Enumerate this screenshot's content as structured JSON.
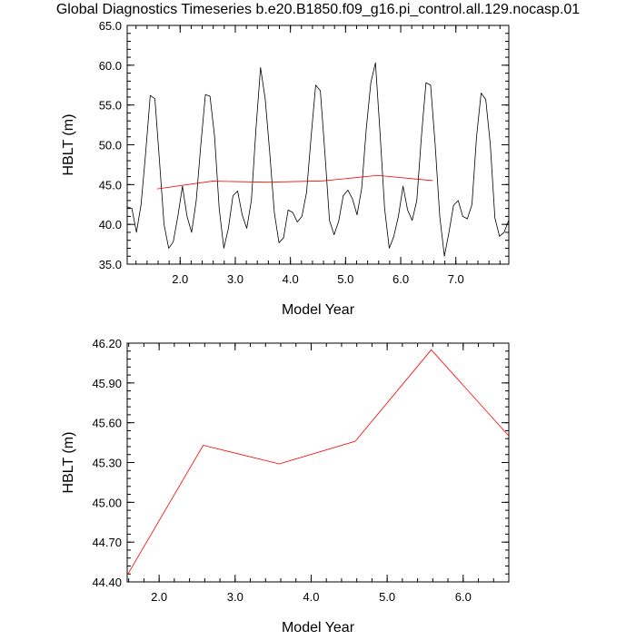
{
  "page": {
    "title": "Global Diagnostics Timeseries b.e20.B1850.f09_g16.pi_control.all.129.nocasp.01"
  },
  "colors": {
    "monthly_line": "#000000",
    "annual_line": "#ff0000",
    "axes": "#000000",
    "background": "#ffffff"
  },
  "chart_data": [
    {
      "type": "line",
      "title": "",
      "xlabel": "Model Year",
      "ylabel": "HBLT (m)",
      "xlim": [
        1.04,
        7.96
      ],
      "ylim": [
        35.0,
        65.0
      ],
      "x_ticks": [
        2.0,
        3.0,
        4.0,
        5.0,
        6.0,
        7.0
      ],
      "x_tick_labels": [
        "2.0",
        "3.0",
        "4.0",
        "5.0",
        "6.0",
        "7.0"
      ],
      "y_ticks": [
        35.0,
        40.0,
        45.0,
        50.0,
        55.0,
        60.0,
        65.0
      ],
      "y_tick_labels": [
        "35.0",
        "40.0",
        "45.0",
        "50.0",
        "55.0",
        "60.0",
        "65.0"
      ],
      "grid": false,
      "series": [
        {
          "key": "monthly",
          "color": "#000000",
          "x": [
            1.042,
            1.125,
            1.208,
            1.292,
            1.375,
            1.458,
            1.542,
            1.625,
            1.708,
            1.792,
            1.875,
            1.958,
            2.042,
            2.125,
            2.208,
            2.292,
            2.375,
            2.458,
            2.542,
            2.625,
            2.708,
            2.792,
            2.875,
            2.958,
            3.042,
            3.125,
            3.208,
            3.292,
            3.375,
            3.458,
            3.542,
            3.625,
            3.708,
            3.792,
            3.875,
            3.958,
            4.042,
            4.125,
            4.208,
            4.292,
            4.375,
            4.458,
            4.542,
            4.625,
            4.708,
            4.792,
            4.875,
            4.958,
            5.042,
            5.125,
            5.208,
            5.292,
            5.375,
            5.458,
            5.542,
            5.625,
            5.708,
            5.792,
            5.875,
            5.958,
            6.042,
            6.125,
            6.208,
            6.292,
            6.375,
            6.458,
            6.542,
            6.625,
            6.708,
            6.792,
            6.875,
            6.958,
            7.042,
            7.125,
            7.208,
            7.292,
            7.375,
            7.458,
            7.542,
            7.625,
            7.708,
            7.792,
            7.875,
            7.958
          ],
          "values": [
            42.2,
            42.0,
            39.0,
            42.5,
            49.0,
            56.2,
            55.8,
            48.0,
            40.0,
            37.0,
            37.8,
            41.0,
            44.8,
            41.0,
            39.0,
            43.0,
            50.0,
            56.3,
            56.1,
            51.0,
            42.0,
            37.0,
            39.5,
            43.6,
            44.2,
            41.2,
            39.5,
            43.0,
            52.0,
            59.7,
            55.8,
            49.0,
            41.5,
            37.7,
            38.3,
            41.8,
            41.5,
            40.3,
            41.0,
            44.0,
            51.0,
            57.5,
            56.8,
            49.0,
            40.5,
            38.7,
            40.4,
            43.6,
            44.3,
            43.2,
            41.2,
            44.5,
            52.0,
            57.8,
            60.3,
            51.5,
            42.0,
            37.0,
            38.5,
            41.0,
            44.8,
            41.8,
            40.5,
            43.0,
            51.0,
            57.8,
            57.5,
            50.0,
            41.0,
            36.0,
            39.0,
            42.4,
            43.0,
            41.0,
            40.7,
            42.5,
            51.0,
            56.5,
            55.7,
            50.0,
            40.8,
            38.5,
            39.0,
            40.5
          ]
        },
        {
          "key": "annual",
          "color": "#ff0000",
          "x": [
            1.58,
            2.58,
            3.58,
            4.58,
            5.58,
            6.58
          ],
          "values": [
            44.45,
            45.43,
            45.3,
            45.46,
            46.15,
            45.5
          ]
        }
      ]
    },
    {
      "type": "line",
      "title": "",
      "xlabel": "Model Year",
      "ylabel": "HBLT (m)",
      "xlim": [
        1.58,
        6.6
      ],
      "ylim": [
        44.4,
        46.2
      ],
      "x_ticks": [
        2.0,
        3.0,
        4.0,
        5.0,
        6.0
      ],
      "x_tick_labels": [
        "2.0",
        "3.0",
        "4.0",
        "5.0",
        "6.0"
      ],
      "y_ticks": [
        44.4,
        44.7,
        45.0,
        45.3,
        45.6,
        45.9,
        46.2
      ],
      "y_tick_labels": [
        "44.40",
        "44.70",
        "45.00",
        "45.30",
        "45.60",
        "45.90",
        "46.20"
      ],
      "grid": false,
      "series": [
        {
          "key": "annual",
          "color": "#ff0000",
          "x": [
            1.58,
            2.58,
            3.58,
            4.58,
            5.58,
            6.6
          ],
          "values": [
            44.45,
            45.43,
            45.29,
            45.46,
            46.15,
            45.5
          ]
        }
      ]
    }
  ]
}
